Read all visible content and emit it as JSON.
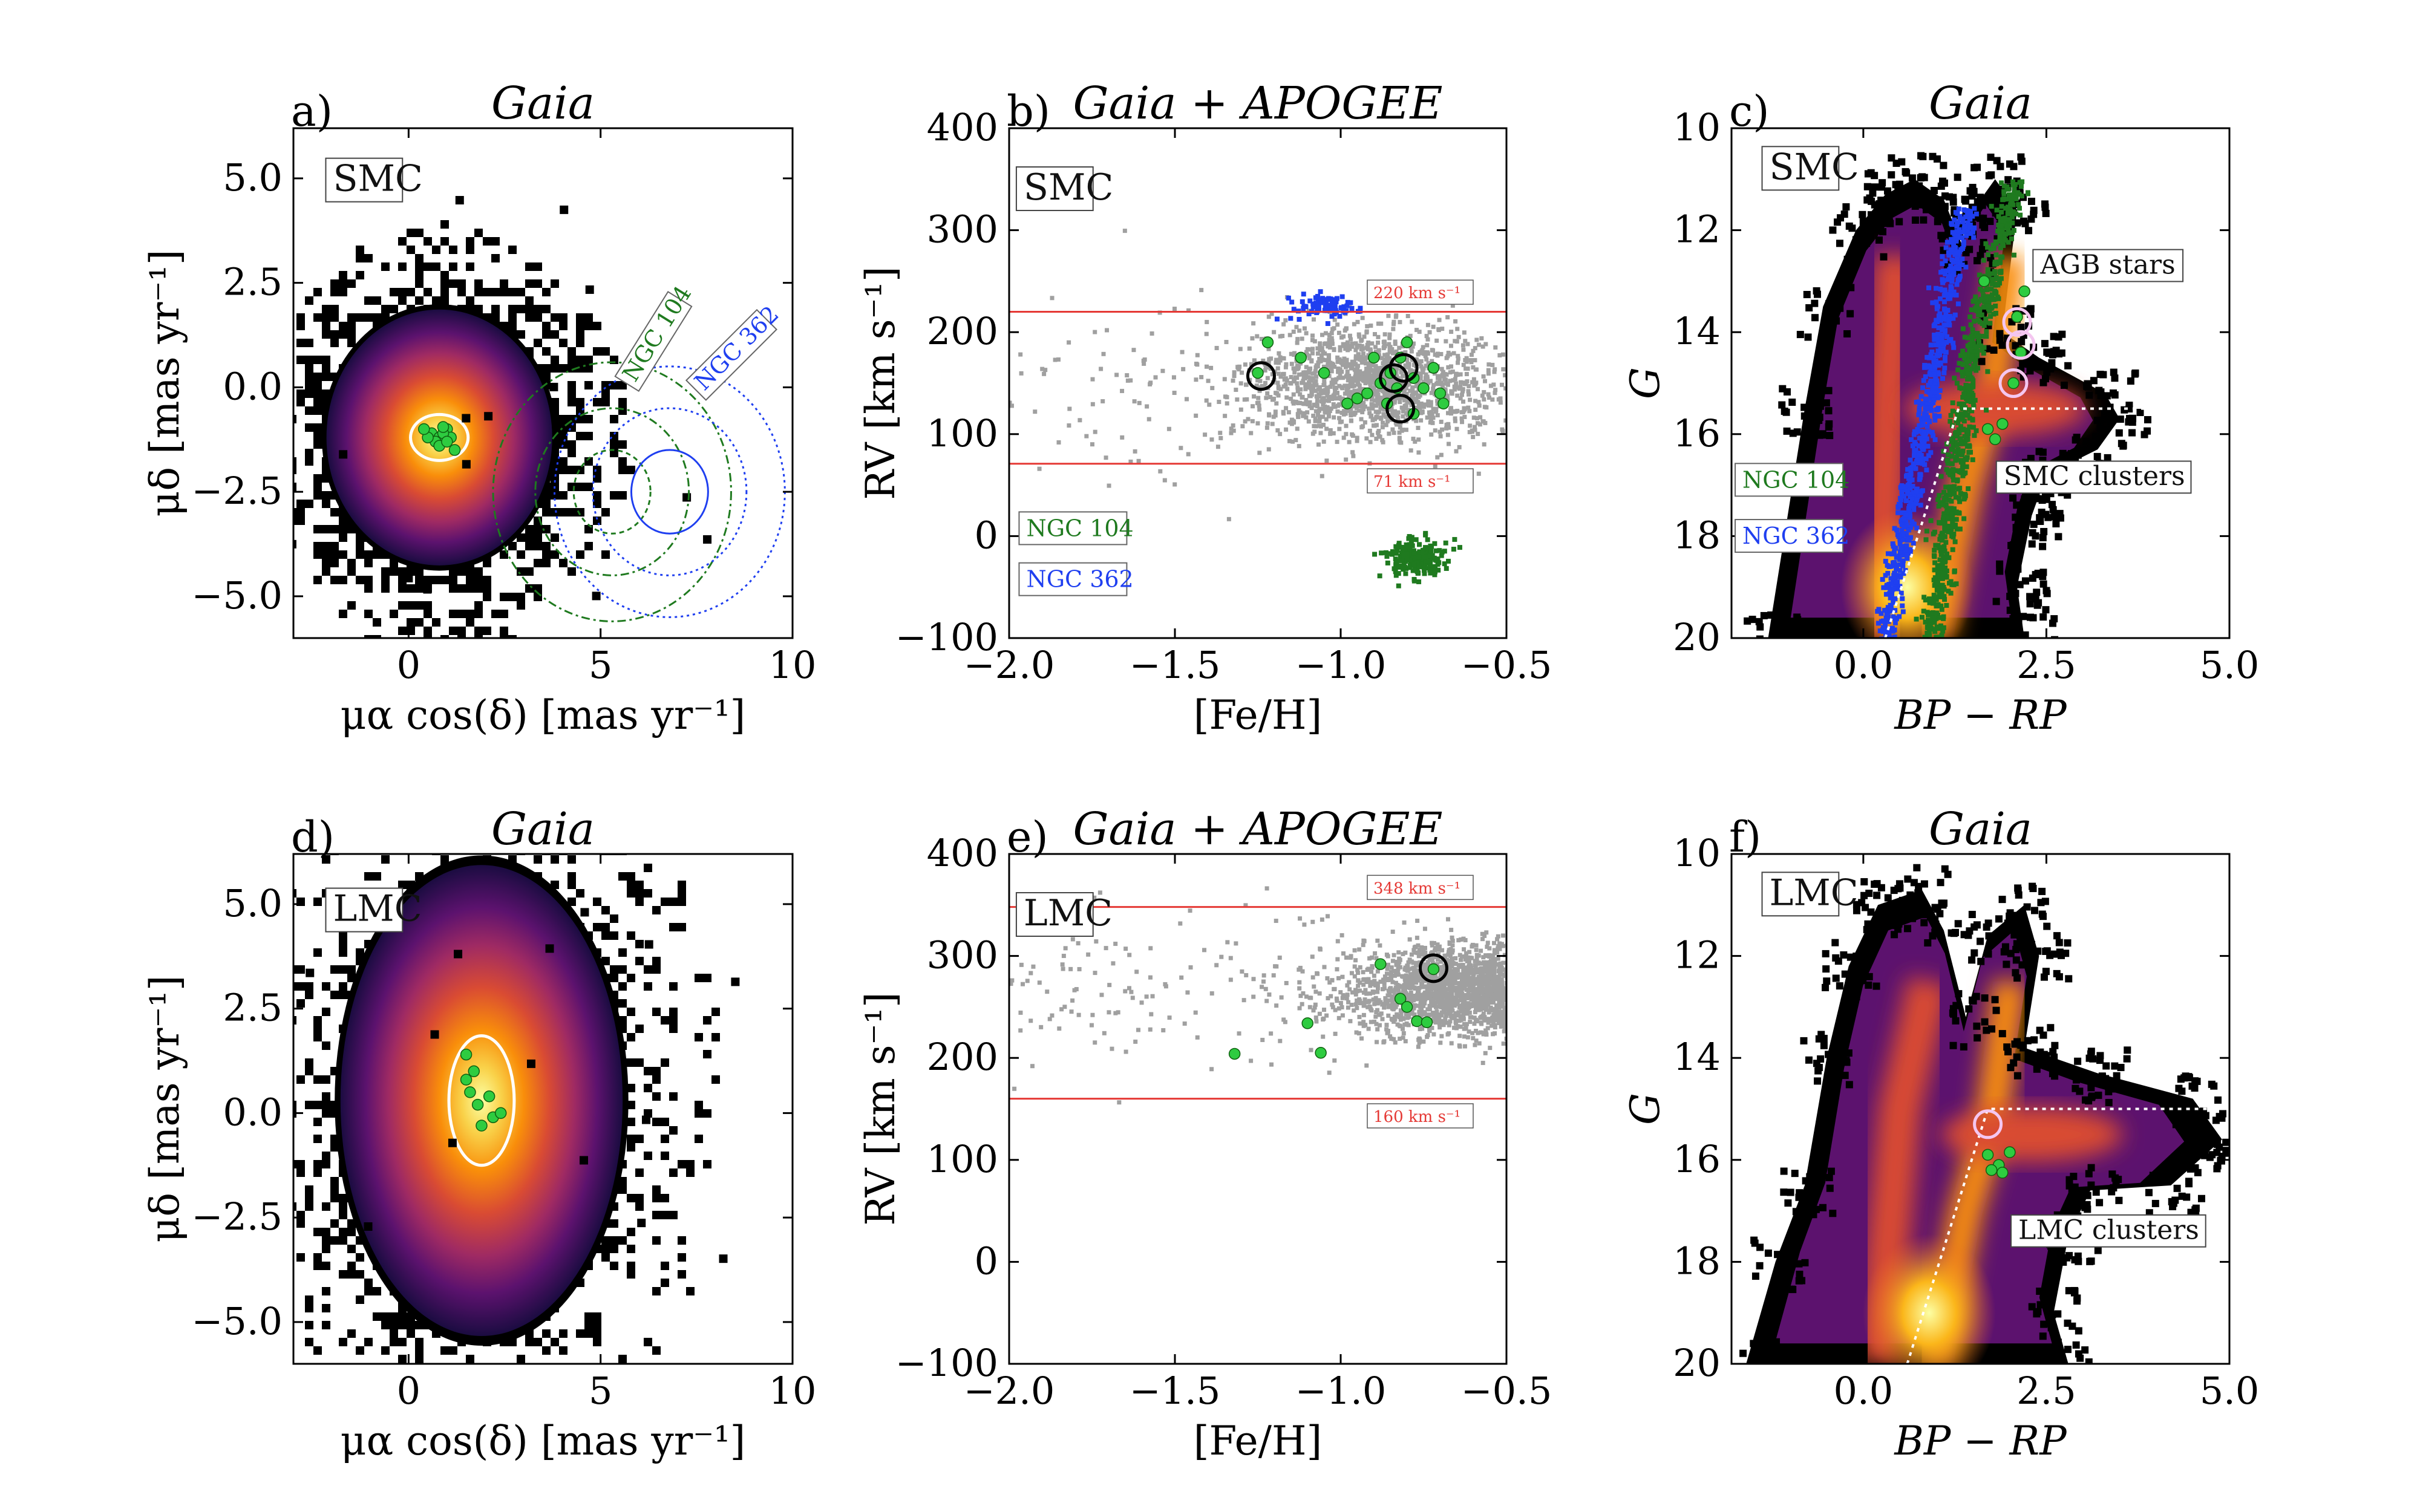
{
  "colors": {
    "red_line": "#e53935",
    "green_marker": "#2ecc40",
    "dark_green": "#1f7a1f",
    "blue": "#1f3ff0",
    "grey_points": "#a0a0a0",
    "white_outline": "#ffffff"
  },
  "chart_data": [
    {
      "id": "a",
      "type": "scatter",
      "letter": "a)",
      "title": "Gaia",
      "xlabel": "μα cos(δ) [mas yr⁻¹]",
      "ylabel": "μδ [mas yr⁻¹]",
      "xlim": [
        -3,
        10
      ],
      "ylim": [
        -6,
        6.2
      ],
      "xticks": [
        {
          "v": 0,
          "t": "0"
        },
        {
          "v": 5,
          "t": "5"
        },
        {
          "v": 10,
          "t": "10"
        }
      ],
      "yticks": [
        {
          "v": -5,
          "t": "−5.0"
        },
        {
          "v": -2.5,
          "t": "−2.5"
        },
        {
          "v": 0,
          "t": "0.0"
        },
        {
          "v": 2.5,
          "t": "2.5"
        },
        {
          "v": 5,
          "t": "5.0"
        }
      ],
      "density": {
        "cx": 0.8,
        "cy": -1.2,
        "sx": 1.2,
        "sy": 1.25
      },
      "ellipse": {
        "cx": 0.8,
        "cy": -1.2,
        "rx": 0.75,
        "ry": 0.55
      },
      "members": [
        [
          0.6,
          -1.1
        ],
        [
          0.8,
          -1.2
        ],
        [
          1.0,
          -1.0
        ],
        [
          0.7,
          -1.3
        ],
        [
          1.1,
          -1.2
        ],
        [
          0.9,
          -1.1
        ],
        [
          0.5,
          -1.2
        ],
        [
          1.2,
          -1.5
        ],
        [
          0.8,
          -1.4
        ],
        [
          0.4,
          -1.0
        ],
        [
          1.0,
          -1.3
        ],
        [
          0.9,
          -0.95
        ]
      ],
      "labels": [
        {
          "text": "SMC",
          "x": -2.0,
          "y": 4.7,
          "kind": "legend"
        }
      ],
      "rotated_labels": [
        {
          "text": "NGC 104",
          "x": 5.9,
          "y": 0.1,
          "angle": -58,
          "color": "#1f7a1f"
        },
        {
          "text": "NGC 362",
          "x": 7.7,
          "y": -0.1,
          "angle": -45,
          "color": "#1f3ff0"
        }
      ],
      "circles": [
        {
          "cx": 5.3,
          "cy": -2.5,
          "r": 1.0,
          "color": "#1f7a1f",
          "dash": "8,6"
        },
        {
          "cx": 5.3,
          "cy": -2.5,
          "r": 2.0,
          "color": "#1f7a1f",
          "dash": "14,6,4,6"
        },
        {
          "cx": 5.3,
          "cy": -2.5,
          "r": 3.1,
          "color": "#1f7a1f",
          "dash": "14,6,4,6"
        },
        {
          "cx": 6.8,
          "cy": -2.5,
          "r": 1.0,
          "color": "#1f3ff0",
          "dash": ""
        },
        {
          "cx": 6.8,
          "cy": -2.5,
          "r": 2.0,
          "color": "#1f3ff0",
          "dash": "4,6"
        },
        {
          "cx": 6.8,
          "cy": -2.5,
          "r": 3.0,
          "color": "#1f3ff0",
          "dash": "4,6"
        }
      ]
    },
    {
      "id": "b",
      "type": "scatter",
      "letter": "b)",
      "title": "Gaia + APOGEE",
      "xlabel": "[Fe/H]",
      "ylabel": "RV [km s⁻¹]",
      "xlim": [
        -2.0,
        -0.5
      ],
      "ylim": [
        -100,
        400
      ],
      "xticks": [
        {
          "v": -2.0,
          "t": "−2.0"
        },
        {
          "v": -1.5,
          "t": "−1.5"
        },
        {
          "v": -1.0,
          "t": "−1.0"
        },
        {
          "v": -0.5,
          "t": "−0.5"
        }
      ],
      "yticks": [
        {
          "v": -100,
          "t": "−100"
        },
        {
          "v": 0,
          "t": "0"
        },
        {
          "v": 100,
          "t": "100"
        },
        {
          "v": 200,
          "t": "200"
        },
        {
          "v": 300,
          "t": "300"
        },
        {
          "v": 400,
          "t": "400"
        }
      ],
      "grey_cloud": {
        "cx": -0.9,
        "cy": 150,
        "sx": 0.2,
        "sy": 28,
        "n": 1500
      },
      "blue_cloud": {
        "cx": -1.05,
        "cy": 225,
        "sx": 0.05,
        "sy": 6,
        "n": 80
      },
      "dkgreen_cloud": {
        "cx": -0.77,
        "cy": -20,
        "sx": 0.04,
        "sy": 9,
        "n": 200
      },
      "hlines": [
        {
          "y": 220,
          "label": "220 km s⁻¹",
          "label_y": 238
        },
        {
          "y": 71,
          "label": "71 km s⁻¹",
          "label_y": 53
        }
      ],
      "members": [
        [
          -1.25,
          160
        ],
        [
          -1.22,
          190
        ],
        [
          -1.12,
          175
        ],
        [
          -1.05,
          160
        ],
        [
          -0.98,
          130
        ],
        [
          -0.95,
          135
        ],
        [
          -0.92,
          140
        ],
        [
          -0.88,
          150
        ],
        [
          -0.85,
          160
        ],
        [
          -0.82,
          175
        ],
        [
          -0.78,
          155
        ],
        [
          -0.75,
          145
        ],
        [
          -0.72,
          165
        ],
        [
          -0.7,
          140
        ],
        [
          -0.69,
          130
        ],
        [
          -0.86,
          130
        ],
        [
          -0.8,
          190
        ],
        [
          -0.9,
          175
        ],
        [
          -0.78,
          120
        ],
        [
          -0.83,
          145
        ]
      ],
      "circled": [
        [
          -1.24,
          157
        ],
        [
          -0.84,
          155
        ],
        [
          -0.81,
          165
        ],
        [
          -0.82,
          125
        ]
      ],
      "labels": [
        {
          "text": "SMC",
          "x": -1.96,
          "y": 330,
          "kind": "legend"
        }
      ],
      "boxes": [
        {
          "text": "NGC 104",
          "x": -1.97,
          "y": 0,
          "color": "#1f7a1f"
        },
        {
          "text": "NGC 362",
          "x": -1.97,
          "y": -50,
          "color": "#1f3ff0"
        }
      ]
    },
    {
      "id": "c",
      "type": "heatmap",
      "letter": "c)",
      "title": "Gaia",
      "xlabel": "BP − RP",
      "ylabel": "G",
      "xlim": [
        -1.8,
        5.0
      ],
      "ylim": [
        20,
        10
      ],
      "xticks": [
        {
          "v": 0,
          "t": "0.0"
        },
        {
          "v": 2.5,
          "t": "2.5"
        },
        {
          "v": 5,
          "t": "5.0"
        }
      ],
      "yticks": [
        {
          "v": 10,
          "t": "10"
        },
        {
          "v": 12,
          "t": "12"
        },
        {
          "v": 14,
          "t": "14"
        },
        {
          "v": 16,
          "t": "16"
        },
        {
          "v": 18,
          "t": "18"
        },
        {
          "v": 20,
          "t": "20"
        }
      ],
      "labels": [
        {
          "text": "SMC",
          "x": -1.3,
          "y": 11.0,
          "kind": "legend"
        },
        {
          "text": "AGB stars",
          "x": 2.4,
          "y": 12.85,
          "kind": "legend-small"
        },
        {
          "text": "SMC clusters",
          "x": 1.9,
          "y": 17.0,
          "kind": "legend-small"
        }
      ],
      "boxes": [
        {
          "text": "NGC 104",
          "x": -1.75,
          "y": 17.05,
          "color": "#1f7a1f"
        },
        {
          "text": "NGC 362",
          "x": -1.75,
          "y": 18.15,
          "color": "#1f3ff0"
        }
      ],
      "cut_dashed": [
        [
          0.3,
          20
        ],
        [
          1.3,
          15.5
        ],
        [
          5.0,
          15.5
        ]
      ],
      "members": [
        [
          2.1,
          13.7
        ],
        [
          2.15,
          14.4
        ],
        [
          2.05,
          15.0
        ],
        [
          1.7,
          15.9
        ],
        [
          1.8,
          16.1
        ],
        [
          1.9,
          15.8
        ],
        [
          2.2,
          13.2
        ],
        [
          1.65,
          13.0
        ]
      ],
      "circled": [
        [
          2.1,
          13.8
        ],
        [
          2.15,
          14.25
        ],
        [
          2.05,
          15.0
        ]
      ]
    },
    {
      "id": "d",
      "type": "scatter",
      "letter": "d)",
      "title": "Gaia",
      "xlabel": "μα cos(δ) [mas yr⁻¹]",
      "ylabel": "μδ [mas yr⁻¹]",
      "xlim": [
        -3,
        10
      ],
      "ylim": [
        -6,
        6.2
      ],
      "xticks": [
        {
          "v": 0,
          "t": "0"
        },
        {
          "v": 5,
          "t": "5"
        },
        {
          "v": 10,
          "t": "10"
        }
      ],
      "yticks": [
        {
          "v": -5,
          "t": "−5.0"
        },
        {
          "v": -2.5,
          "t": "−2.5"
        },
        {
          "v": 0,
          "t": "0.0"
        },
        {
          "v": 2.5,
          "t": "2.5"
        },
        {
          "v": 5,
          "t": "5.0"
        }
      ],
      "density": {
        "cx": 1.9,
        "cy": 0.3,
        "sx": 1.5,
        "sy": 2.3
      },
      "ellipse": {
        "cx": 1.9,
        "cy": 0.3,
        "rx": 0.85,
        "ry": 1.55
      },
      "members": [
        [
          1.5,
          1.4
        ],
        [
          1.7,
          1.0
        ],
        [
          1.6,
          0.5
        ],
        [
          2.1,
          0.4
        ],
        [
          2.2,
          -0.1
        ],
        [
          1.9,
          -0.3
        ],
        [
          1.5,
          0.8
        ],
        [
          2.4,
          0.0
        ],
        [
          1.8,
          0.2
        ]
      ],
      "labels": [
        {
          "text": "LMC",
          "x": -2.0,
          "y": 4.6,
          "kind": "legend"
        }
      ]
    },
    {
      "id": "e",
      "type": "scatter",
      "letter": "e)",
      "title": "Gaia + APOGEE",
      "xlabel": "[Fe/H]",
      "ylabel": "RV [km s⁻¹]",
      "xlim": [
        -2.0,
        -0.5
      ],
      "ylim": [
        -100,
        400
      ],
      "xticks": [
        {
          "v": -2.0,
          "t": "−2.0"
        },
        {
          "v": -1.5,
          "t": "−1.5"
        },
        {
          "v": -1.0,
          "t": "−1.0"
        },
        {
          "v": -0.5,
          "t": "−0.5"
        }
      ],
      "yticks": [
        {
          "v": -100,
          "t": "−100"
        },
        {
          "v": 0,
          "t": "0"
        },
        {
          "v": 100,
          "t": "100"
        },
        {
          "v": 200,
          "t": "200"
        },
        {
          "v": 300,
          "t": "300"
        },
        {
          "v": 400,
          "t": "400"
        }
      ],
      "grey_cloud": {
        "cx": -0.62,
        "cy": 265,
        "sx": 0.18,
        "sy": 22,
        "n": 2200
      },
      "hlines": [
        {
          "y": 348,
          "label": "348 km s⁻¹",
          "label_y": 366
        },
        {
          "y": 160,
          "label": "160 km s⁻¹",
          "label_y": 142
        }
      ],
      "members": [
        [
          -0.88,
          292
        ],
        [
          -0.82,
          258
        ],
        [
          -0.8,
          250
        ],
        [
          -0.77,
          236
        ],
        [
          -0.74,
          235
        ],
        [
          -0.72,
          287
        ],
        [
          -1.1,
          234
        ],
        [
          -1.06,
          205
        ],
        [
          -1.32,
          204
        ]
      ],
      "circled": [
        [
          -0.72,
          288
        ]
      ],
      "labels": [
        {
          "text": "LMC",
          "x": -1.96,
          "y": 330,
          "kind": "legend"
        }
      ]
    },
    {
      "id": "f",
      "type": "heatmap",
      "letter": "f)",
      "title": "Gaia",
      "xlabel": "BP − RP",
      "ylabel": "G",
      "xlim": [
        -1.8,
        5.0
      ],
      "ylim": [
        20,
        10
      ],
      "xticks": [
        {
          "v": 0,
          "t": "0.0"
        },
        {
          "v": 2.5,
          "t": "2.5"
        },
        {
          "v": 5,
          "t": "5.0"
        }
      ],
      "yticks": [
        {
          "v": 10,
          "t": "10"
        },
        {
          "v": 12,
          "t": "12"
        },
        {
          "v": 14,
          "t": "14"
        },
        {
          "v": 16,
          "t": "16"
        },
        {
          "v": 18,
          "t": "18"
        },
        {
          "v": 20,
          "t": "20"
        }
      ],
      "labels": [
        {
          "text": "LMC",
          "x": -1.3,
          "y": 11.0,
          "kind": "legend"
        },
        {
          "text": "LMC clusters",
          "x": 2.1,
          "y": 17.55,
          "kind": "legend-small"
        }
      ],
      "cut_dashed": [
        [
          0.6,
          20
        ],
        [
          1.7,
          15.0
        ],
        [
          5.0,
          15.0
        ]
      ],
      "members": [
        [
          1.7,
          15.9
        ],
        [
          1.85,
          16.1
        ],
        [
          2.0,
          15.85
        ],
        [
          1.75,
          16.2
        ],
        [
          1.9,
          16.25
        ]
      ],
      "circled": [
        [
          1.7,
          15.3
        ]
      ]
    }
  ]
}
